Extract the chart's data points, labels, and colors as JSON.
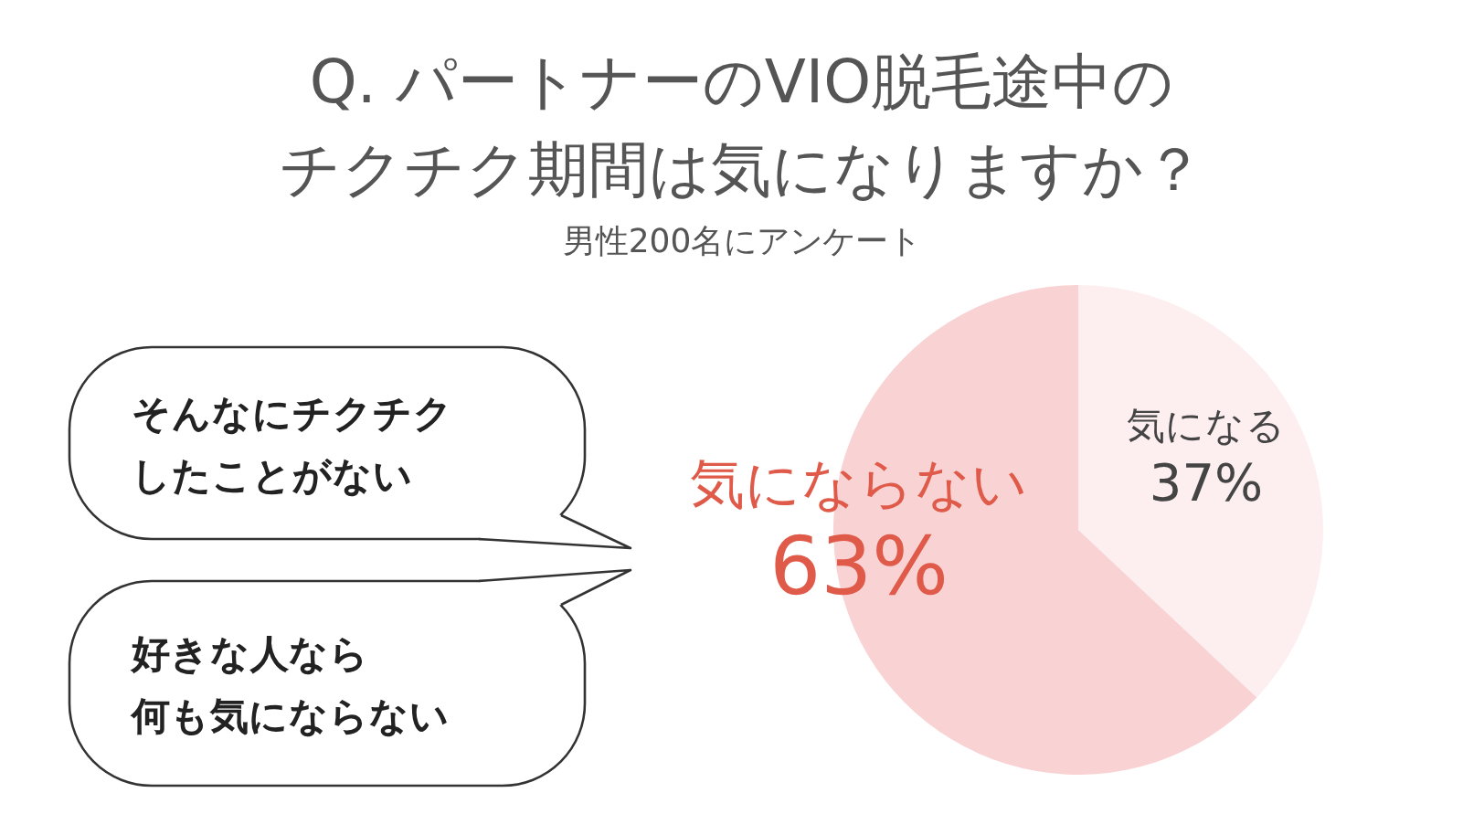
{
  "chart_data": {
    "type": "pie",
    "title": "Q. パートナーのVIO脱毛途中のチクチク期間は気になりますか？",
    "subtitle": "男性200名にアンケート",
    "categories": [
      "気になる",
      "気にならない"
    ],
    "values": [
      37,
      63
    ],
    "colors": [
      "#fdeef0",
      "#f9d3d4"
    ],
    "value_labels": [
      "37%",
      "63%"
    ],
    "annotations": [
      "そんなにチクチクしたことがない",
      "好きな人なら何も気にならない"
    ]
  }
}
